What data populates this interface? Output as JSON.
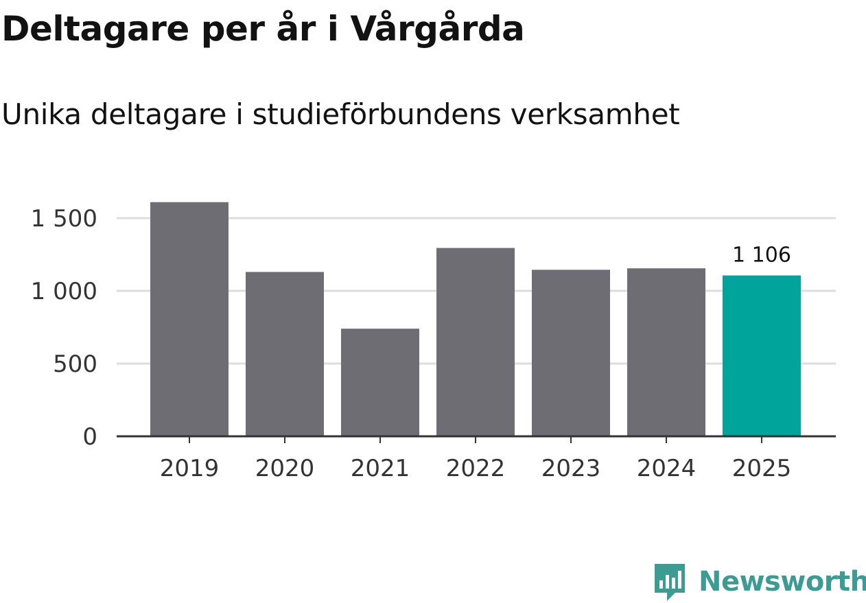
{
  "header": {
    "title": "Deltagare per år i Vårgårda",
    "subtitle": "Unika deltagare i studieförbundens verksamhet"
  },
  "chart_data": {
    "type": "bar",
    "title": "Deltagare per år i Vårgårda",
    "subtitle": "Unika deltagare i studieförbundens verksamhet",
    "categories": [
      "2019",
      "2020",
      "2021",
      "2022",
      "2023",
      "2024",
      "2025"
    ],
    "values": [
      1610,
      1130,
      740,
      1295,
      1145,
      1155,
      1106
    ],
    "highlight_index": 6,
    "data_labels": {
      "6": "1 106"
    },
    "y_ticks": [
      0,
      500,
      1000,
      1500
    ],
    "y_tick_labels": [
      "0",
      "500",
      "1 000",
      "1 500"
    ],
    "ylim": [
      0,
      1700
    ],
    "xlabel": "",
    "ylabel": "",
    "grid": true,
    "colors": {
      "bar": "#6e6d73",
      "highlight": "#00a49a",
      "grid": "#dddddd",
      "axis": "#333333"
    }
  },
  "brand": {
    "name": "Newsworthy",
    "logo_icon": "newsworthy-bar-chart-badge-icon",
    "color": "#3d9b93"
  }
}
